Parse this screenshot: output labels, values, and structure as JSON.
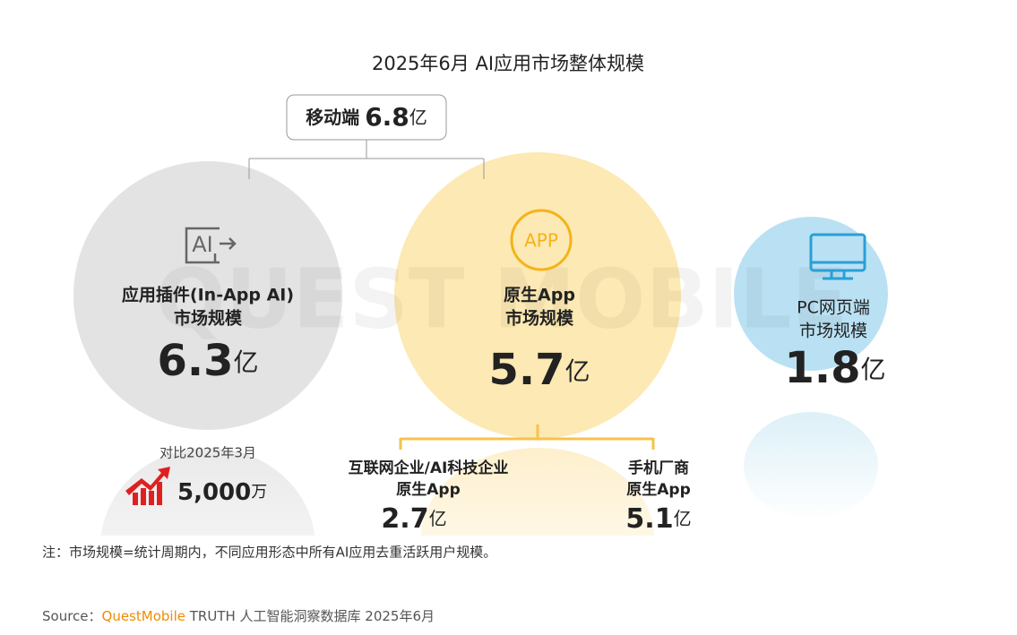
{
  "title": "2025年6月 AI应用市场整体规模",
  "watermark": "QUEST MOBILE",
  "mobile": {
    "label": "移动端",
    "value": "6.8",
    "unit": "亿"
  },
  "circles": [
    {
      "icon": "AI",
      "lines": [
        "应用插件(In-App AI)",
        "市场规模"
      ],
      "value": "6.3",
      "unit": "亿"
    },
    {
      "icon": "APP",
      "lines": [
        "原生App",
        "市场规模"
      ],
      "value": "5.7",
      "unit": "亿"
    },
    {
      "lines": [
        "PC网页端",
        "市场规模"
      ],
      "value": "1.8",
      "unit": "亿"
    }
  ],
  "compare": {
    "label": "对比2025年3月",
    "value": "5,000",
    "unit": "万"
  },
  "sub": [
    {
      "lines": [
        "互联网企业/AI科技企业",
        "原生App"
      ],
      "value": "2.7",
      "unit": "亿"
    },
    {
      "lines": [
        "手机厂商",
        "原生App"
      ],
      "value": "5.1",
      "unit": "亿"
    }
  ],
  "note": "注：市场规模=统计周期内，不同应用形态中所有AI应用去重活跃用户规模。",
  "source": {
    "label": "Source：",
    "brand": "QuestMobile",
    "text": " TRUTH 人工智能洞察数据库 2025年6月"
  }
}
